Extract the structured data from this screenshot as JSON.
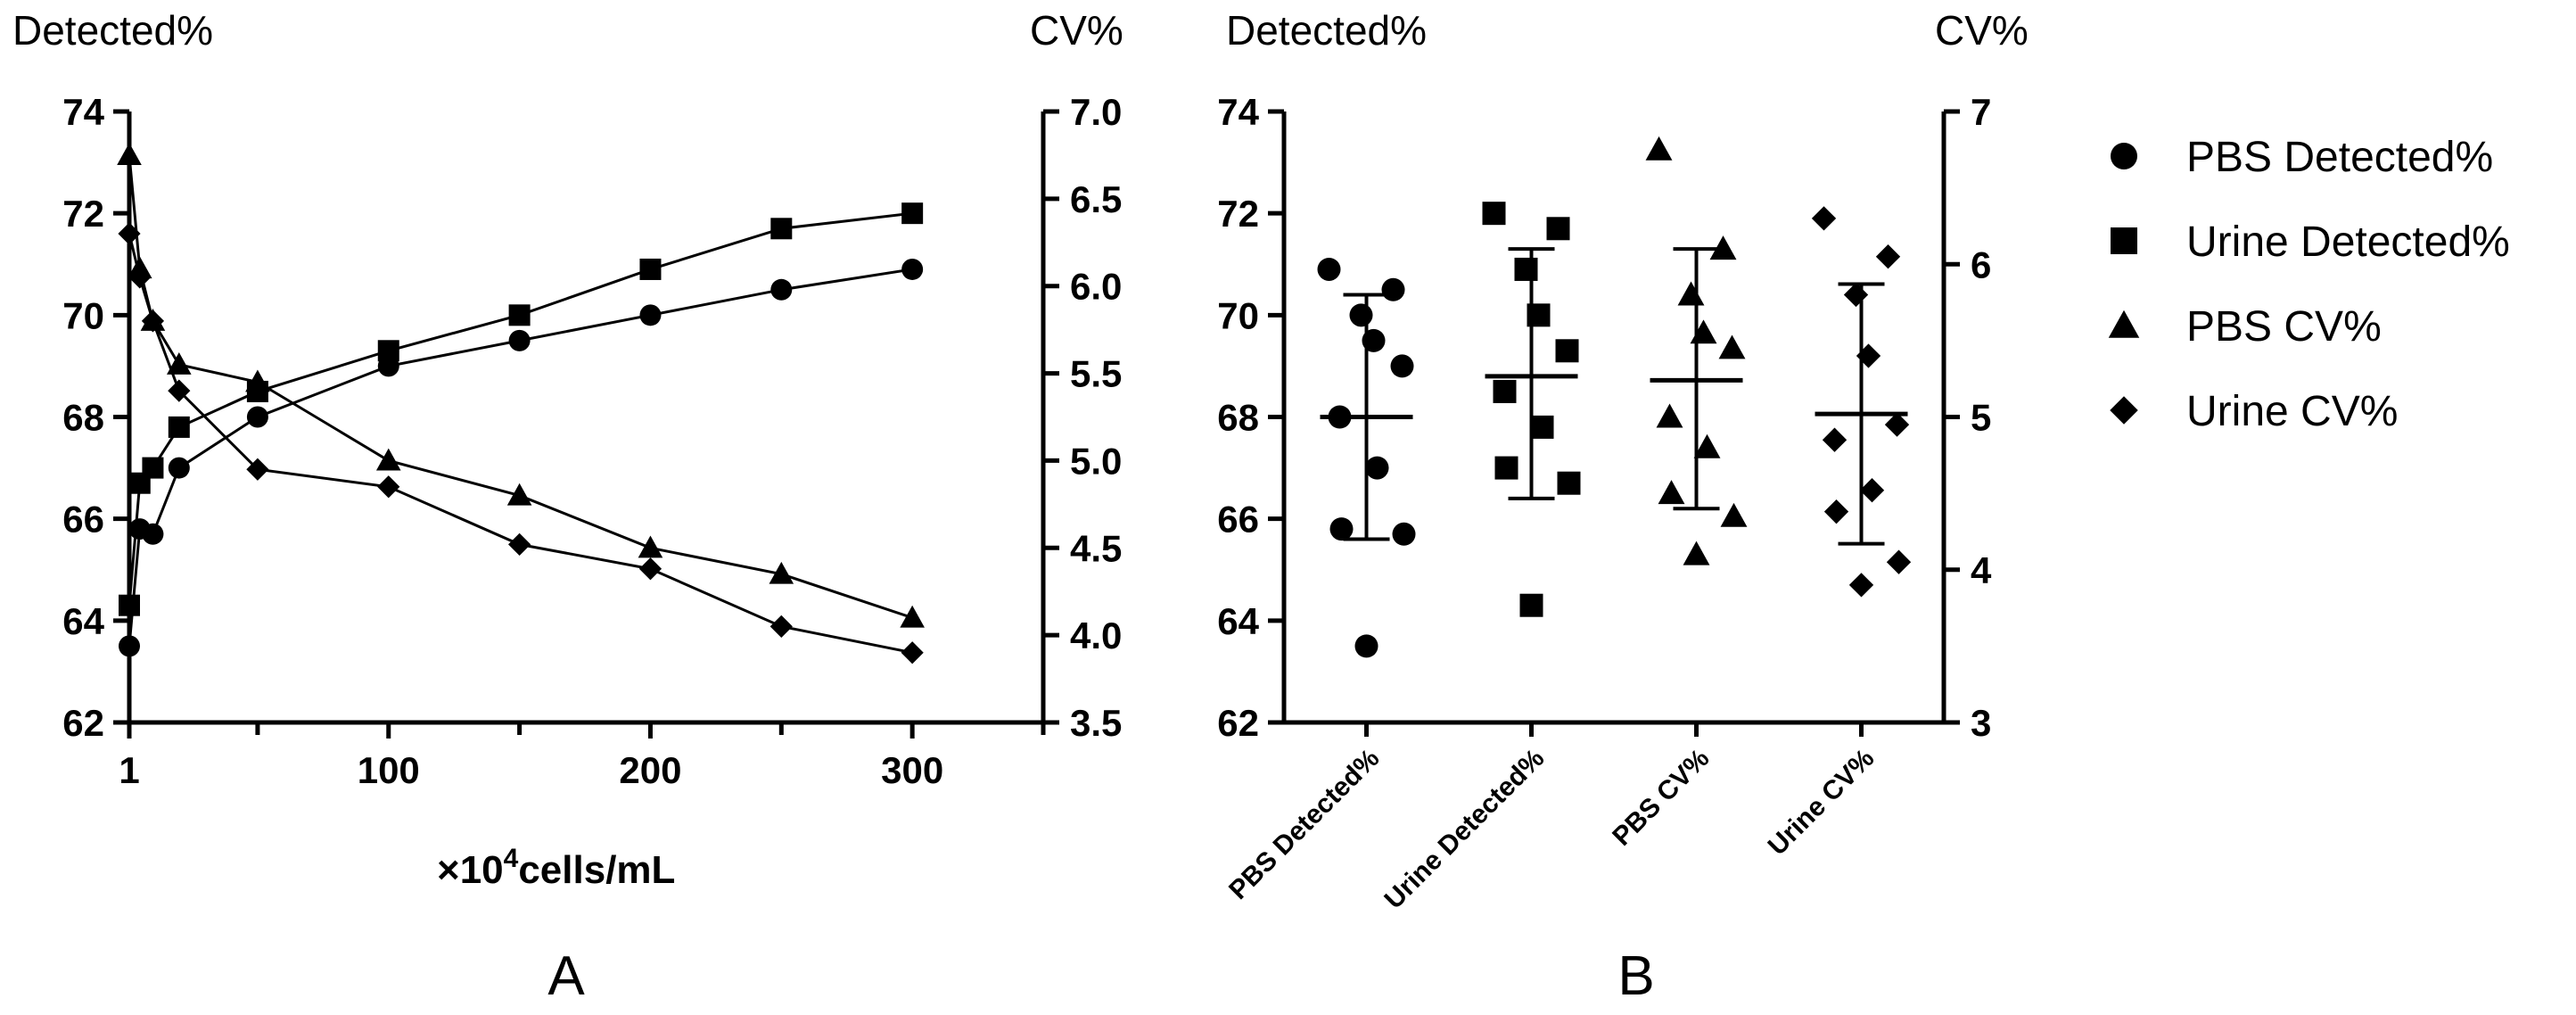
{
  "chart_data": [
    {
      "panel_label": "A",
      "type": "line",
      "left_axis_title": "Detected%",
      "right_axis_title": "CV%",
      "xlabel_prefix": "×10",
      "xlabel_sup": "4",
      "xlabel_suffix": "cells/mL",
      "x_ticks": [
        "1",
        "100",
        "200",
        "300"
      ],
      "x_tick_values": [
        1,
        100,
        200,
        300
      ],
      "xlim": [
        1,
        350
      ],
      "y_left_ticks": [
        "62",
        "64",
        "66",
        "68",
        "70",
        "72",
        "74"
      ],
      "y_left_lim": [
        62,
        74
      ],
      "y_right_ticks": [
        "3.5",
        "4.0",
        "4.5",
        "5.0",
        "5.5",
        "6.0",
        "6.5",
        "7.0"
      ],
      "y_right_lim": [
        3.5,
        7.0
      ],
      "series": [
        {
          "name": "PBS Detected%",
          "marker": "circle",
          "axis": "left",
          "x": [
            1,
            5,
            10,
            20,
            50,
            100,
            150,
            200,
            250,
            300
          ],
          "y": [
            63.5,
            65.8,
            65.7,
            67.0,
            68.0,
            69.0,
            69.5,
            70.0,
            70.5,
            70.9
          ]
        },
        {
          "name": "Urine Detected%",
          "marker": "square",
          "axis": "left",
          "x": [
            1,
            5,
            10,
            20,
            50,
            100,
            150,
            200,
            250,
            300
          ],
          "y": [
            64.3,
            66.7,
            67.0,
            67.8,
            68.5,
            69.3,
            70.0,
            70.9,
            71.7,
            72.0
          ]
        },
        {
          "name": "PBS CV%",
          "marker": "triangle",
          "axis": "right",
          "x": [
            1,
            5,
            10,
            20,
            50,
            100,
            150,
            200,
            250,
            300
          ],
          "y": [
            6.75,
            6.1,
            5.8,
            5.55,
            5.45,
            5.0,
            4.8,
            4.5,
            4.35,
            4.1
          ]
        },
        {
          "name": "Urine CV%",
          "marker": "diamond",
          "axis": "right",
          "x": [
            1,
            5,
            10,
            20,
            50,
            100,
            150,
            200,
            250,
            300
          ],
          "y": [
            6.3,
            6.05,
            5.8,
            5.4,
            4.95,
            4.85,
            4.52,
            4.38,
            4.05,
            3.9
          ]
        }
      ]
    },
    {
      "panel_label": "B",
      "type": "scatter",
      "left_axis_title": "Detected%",
      "right_axis_title": "CV%",
      "categories": [
        "PBS Detected%",
        "Urine Detected%",
        "PBS CV%",
        "Urine CV%"
      ],
      "y_left_ticks": [
        "62",
        "64",
        "66",
        "68",
        "70",
        "72",
        "74"
      ],
      "y_left_lim": [
        62,
        74
      ],
      "y_right_ticks": [
        "3",
        "4",
        "5",
        "6",
        "7"
      ],
      "y_right_lim": [
        3,
        7
      ],
      "groups": [
        {
          "name": "PBS Detected%",
          "marker": "circle",
          "axis": "left",
          "values": [
            70.9,
            70.5,
            70.0,
            69.5,
            69.0,
            68.0,
            67.0,
            65.8,
            65.7,
            63.5
          ],
          "mean": 68.0,
          "sd_upper": 70.4,
          "sd_lower": 65.6
        },
        {
          "name": "Urine Detected%",
          "marker": "square",
          "axis": "left",
          "values": [
            72.0,
            71.7,
            70.9,
            70.0,
            69.3,
            68.5,
            67.8,
            67.0,
            66.7,
            64.3
          ],
          "mean": 68.8,
          "sd_upper": 71.3,
          "sd_lower": 66.4
        },
        {
          "name": "PBS CV%",
          "marker": "triangle",
          "axis": "right",
          "values": [
            6.75,
            6.1,
            5.8,
            5.55,
            5.45,
            5.0,
            4.8,
            4.5,
            4.35,
            4.1
          ],
          "mean": 5.24,
          "sd_upper": 6.1,
          "sd_lower": 4.4
        },
        {
          "name": "Urine CV%",
          "marker": "diamond",
          "axis": "right",
          "values": [
            6.3,
            6.05,
            5.8,
            5.4,
            4.95,
            4.85,
            4.52,
            4.38,
            4.05,
            3.9
          ],
          "mean": 5.02,
          "sd_upper": 5.87,
          "sd_lower": 4.17
        }
      ],
      "legend_position": "right",
      "legend": [
        "PBS Detected%",
        "Urine Detected%",
        "PBS CV%",
        "Urine CV%"
      ]
    }
  ]
}
